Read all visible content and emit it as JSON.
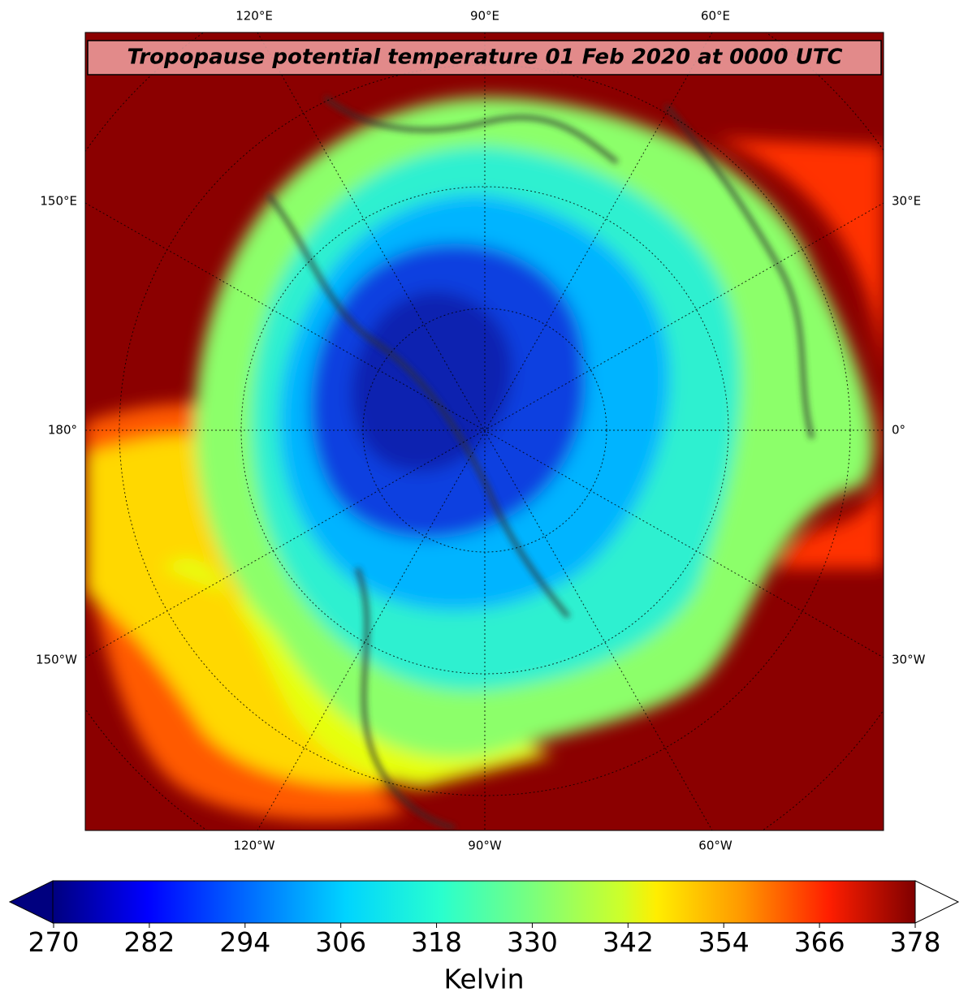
{
  "map": {
    "title": "Tropopause potential temperature 01 Feb 2020 at 0000 UTC",
    "top_labels": [
      "120°E",
      "90°E",
      "60°E"
    ],
    "left_labels": [
      "150°E",
      "180°",
      "150°W"
    ],
    "right_labels": [
      "30°E",
      "0°",
      "30°W"
    ],
    "bottom_labels": [
      "120°W",
      "90°W",
      "60°W"
    ]
  },
  "colorbar": {
    "label": "Kelvin",
    "range": [
      270,
      378
    ],
    "ticks": [
      270,
      282,
      294,
      306,
      318,
      330,
      342,
      354,
      366,
      378
    ]
  }
}
